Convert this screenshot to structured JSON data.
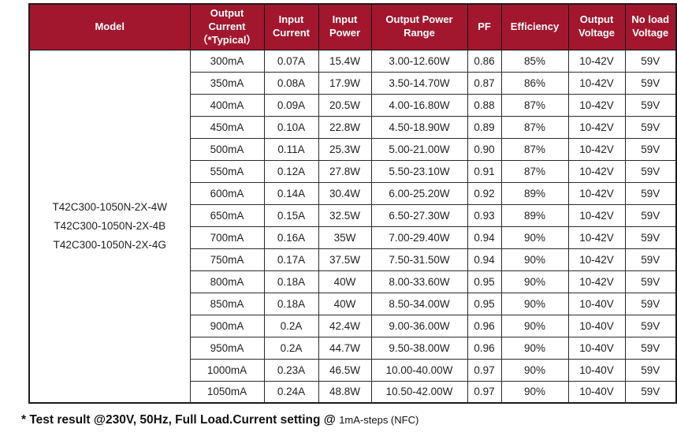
{
  "colors": {
    "header_bg": "#A2172E",
    "header_text": "#FFFFFF",
    "grid_line": "#2B2B2B"
  },
  "table": {
    "headers": [
      "Model",
      "Output\nCurrent\n（*Typical）",
      "Input\nCurrent",
      "Input\nPower",
      "Output Power\nRange",
      "PF",
      "Efficiency",
      "Output\nVoltage",
      "No load\nVoltage"
    ],
    "models": [
      "T42C300-1050N-2X-4W",
      "T42C300-1050N-2X-4B",
      "T42C300-1050N-2X-4G"
    ],
    "rows": [
      [
        "300mA",
        "0.07A",
        "15.4W",
        "3.00-12.60W",
        "0.86",
        "85%",
        "10-42V",
        "59V"
      ],
      [
        "350mA",
        "0.08A",
        "17.9W",
        "3.50-14.70W",
        "0.87",
        "86%",
        "10-42V",
        "59V"
      ],
      [
        "400mA",
        "0.09A",
        "20.5W",
        "4.00-16.80W",
        "0.88",
        "87%",
        "10-42V",
        "59V"
      ],
      [
        "450mA",
        "0.10A",
        "22.8W",
        "4.50-18.90W",
        "0.89",
        "87%",
        "10-42V",
        "59V"
      ],
      [
        "500mA",
        "0.11A",
        "25.3W",
        "5.00-21.00W",
        "0.90",
        "87%",
        "10-42V",
        "59V"
      ],
      [
        "550mA",
        "0.12A",
        "27.8W",
        "5.50-23.10W",
        "0.91",
        "87%",
        "10-42V",
        "59V"
      ],
      [
        "600mA",
        "0.14A",
        "30.4W",
        "6.00-25.20W",
        "0.92",
        "89%",
        "10-42V",
        "59V"
      ],
      [
        "650mA",
        "0.15A",
        "32.5W",
        "6.50-27.30W",
        "0.93",
        "89%",
        "10-42V",
        "59V"
      ],
      [
        "700mA",
        "0.16A",
        "35W",
        "7.00-29.40W",
        "0.94",
        "90%",
        "10-42V",
        "59V"
      ],
      [
        "750mA",
        "0.17A",
        "37.5W",
        "7.50-31.50W",
        "0.94",
        "90%",
        "10-42V",
        "59V"
      ],
      [
        "800mA",
        "0.18A",
        "40W",
        "8.00-33.60W",
        "0.95",
        "90%",
        "10-42V",
        "59V"
      ],
      [
        "850mA",
        "0.18A",
        "40W",
        "8.50-34.00W",
        "0.95",
        "90%",
        "10-40V",
        "59V"
      ],
      [
        "900mA",
        "0.2A",
        "42.4W",
        "9.00-36.00W",
        "0.96",
        "90%",
        "10-40V",
        "59V"
      ],
      [
        "950mA",
        "0.2A",
        "44.7W",
        "9.50-38.00W",
        "0.96",
        "90%",
        "10-40V",
        "59V"
      ],
      [
        "1000mA",
        "0.23A",
        "46.5W",
        "10.00-40.00W",
        "0.97",
        "90%",
        "10-40V",
        "59V"
      ],
      [
        "1050mA",
        "0.24A",
        "48.8W",
        "10.50-42.00W",
        "0.97",
        "90%",
        "10-40V",
        "59V"
      ]
    ]
  },
  "footnote": {
    "bold": "* Test result @230V, 50Hz, Full Load.Current setting @ ",
    "normal": "1mA-steps (NFC)"
  }
}
